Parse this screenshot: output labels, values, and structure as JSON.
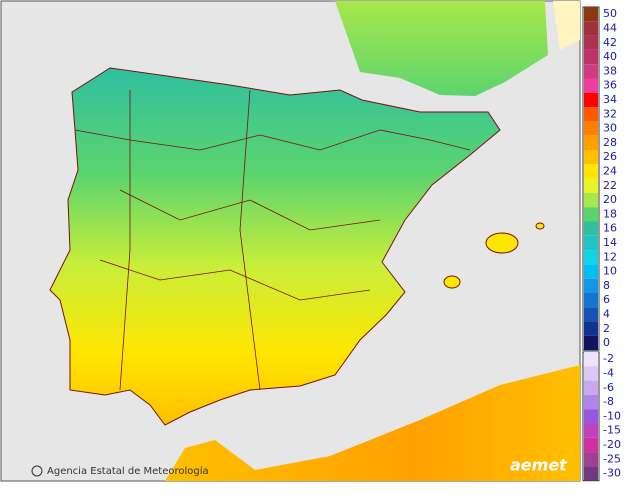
{
  "legend": {
    "groups": [
      {
        "items": [
          {
            "value": 50,
            "color": "#8b3a0f"
          },
          {
            "value": 44,
            "color": "#a0303a"
          },
          {
            "value": 42,
            "color": "#b03050"
          },
          {
            "value": 40,
            "color": "#c0306a"
          },
          {
            "value": 38,
            "color": "#d03a80"
          },
          {
            "value": 36,
            "color": "#f03c9c"
          },
          {
            "value": 34,
            "color": "#ff0000"
          },
          {
            "value": 32,
            "color": "#ff5a00"
          },
          {
            "value": 30,
            "color": "#ff8000"
          },
          {
            "value": 28,
            "color": "#ffa000"
          },
          {
            "value": 26,
            "color": "#ffc000"
          },
          {
            "value": 24,
            "color": "#ffe600"
          },
          {
            "value": 22,
            "color": "#e6f526"
          },
          {
            "value": 20,
            "color": "#a8e84a"
          },
          {
            "value": 18,
            "color": "#5cd46e"
          },
          {
            "value": 16,
            "color": "#30c0a0"
          },
          {
            "value": 14,
            "color": "#20c4c4"
          },
          {
            "value": 12,
            "color": "#10d4e4"
          },
          {
            "value": 10,
            "color": "#00bff0"
          },
          {
            "value": 8,
            "color": "#1496e6"
          },
          {
            "value": 6,
            "color": "#1474d2"
          },
          {
            "value": 4,
            "color": "#1452b4"
          },
          {
            "value": 2,
            "color": "#123290"
          },
          {
            "value": 0,
            "color": "#101460"
          }
        ]
      },
      {
        "items": [
          {
            "value": -2,
            "color": "#ece2fa"
          },
          {
            "value": -4,
            "color": "#dcc8f4"
          },
          {
            "value": -6,
            "color": "#c8a8ee"
          },
          {
            "value": -8,
            "color": "#b084ea"
          },
          {
            "value": -10,
            "color": "#9656e0"
          },
          {
            "value": -15,
            "color": "#c040c0"
          },
          {
            "value": -20,
            "color": "#d030a0"
          },
          {
            "value": -25,
            "color": "#a04090"
          },
          {
            "value": -30,
            "color": "#703880"
          }
        ]
      }
    ]
  },
  "footer": {
    "credit": "Agencia Estatal de Meteorología",
    "logo": "aemet"
  }
}
